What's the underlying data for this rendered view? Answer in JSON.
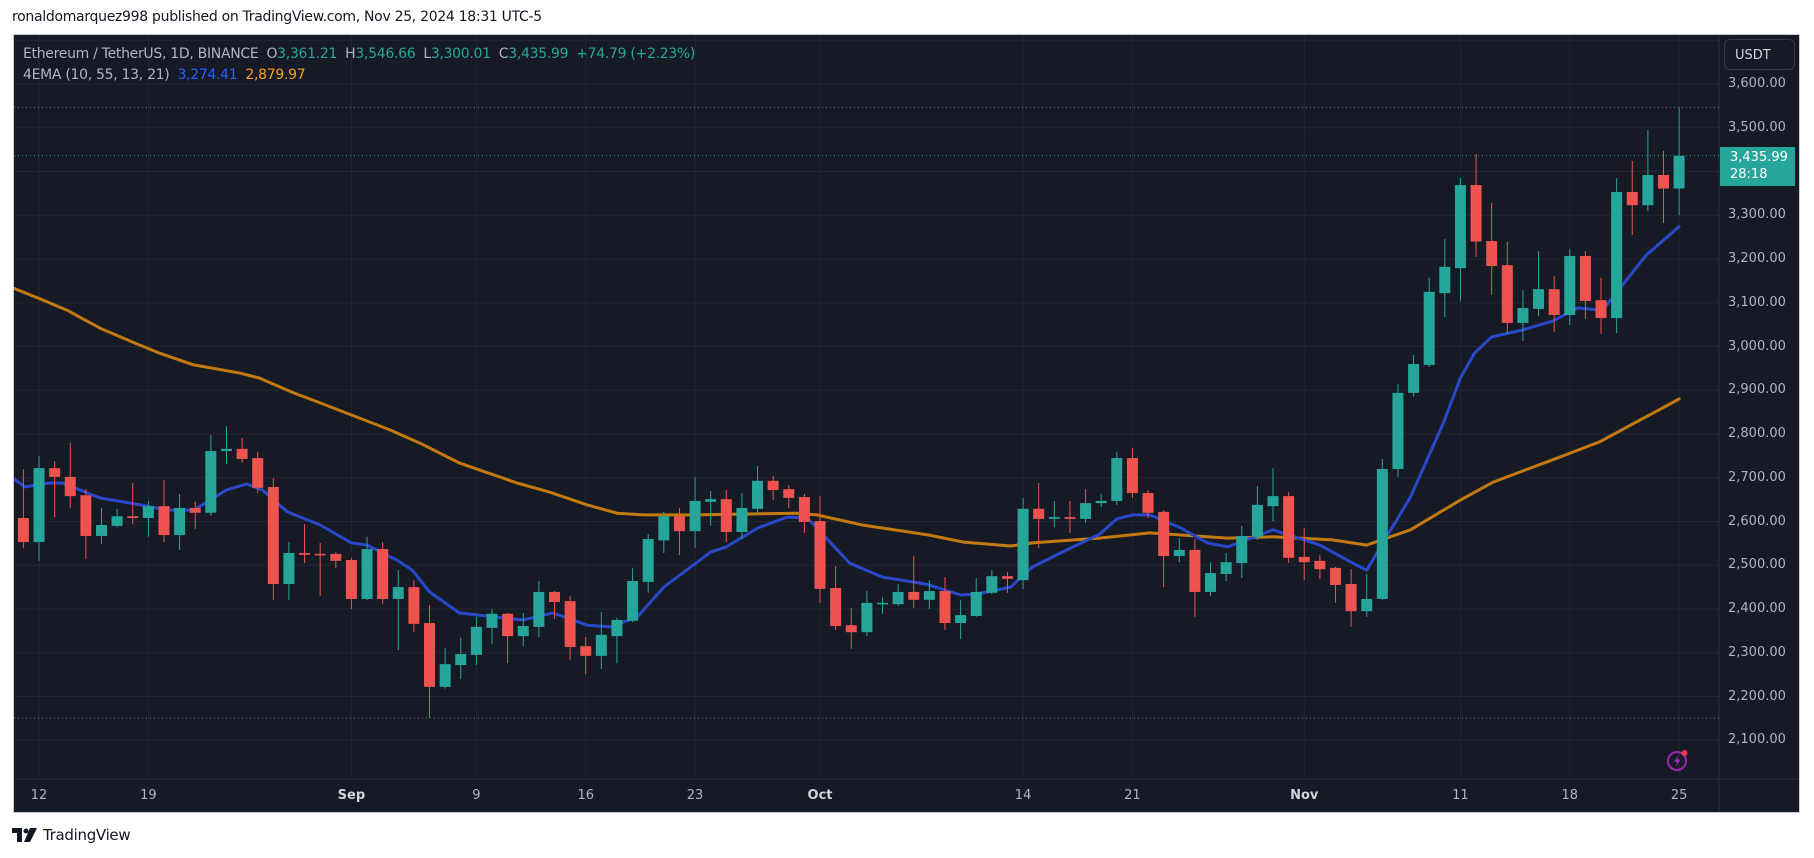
{
  "publisher_line": "ronaldomarquez998 published on TradingView.com, Nov 25, 2024 18:31 UTC-5",
  "symbol": {
    "title": "Ethereum / TetherUS, 1D, BINANCE",
    "open_label": "O",
    "open": "3,361.21",
    "high_label": "H",
    "high": "3,546.66",
    "low_label": "L",
    "low": "3,300.01",
    "close_label": "C",
    "close": "3,435.99",
    "change": "+74.79 (+2.23%)"
  },
  "indicator": {
    "name": "4EMA (10, 55, 13, 21)",
    "value_fast": "3,274.41",
    "value_slow": "2,879.97"
  },
  "price_axis": {
    "currency_button": "USDT",
    "last_price": "3,435.99",
    "countdown": "28:18",
    "labels": [
      "3,600.00",
      "3,500.00",
      "3,300.00",
      "3,200.00",
      "3,100.00",
      "3,000.00",
      "2,900.00",
      "2,800.00",
      "2,700.00",
      "2,600.00",
      "2,500.00",
      "2,400.00",
      "2,300.00",
      "2,200.00",
      "2,100.00"
    ]
  },
  "time_axis": {
    "labels": [
      {
        "text": "12",
        "bold": false
      },
      {
        "text": "19",
        "bold": false
      },
      {
        "text": "Sep",
        "bold": true
      },
      {
        "text": "9",
        "bold": false
      },
      {
        "text": "16",
        "bold": false
      },
      {
        "text": "23",
        "bold": false
      },
      {
        "text": "Oct",
        "bold": true
      },
      {
        "text": "14",
        "bold": false
      },
      {
        "text": "21",
        "bold": false
      },
      {
        "text": "Nov",
        "bold": true
      },
      {
        "text": "11",
        "bold": false
      },
      {
        "text": "18",
        "bold": false
      },
      {
        "text": "25",
        "bold": false
      }
    ]
  },
  "footer": {
    "brand": "TradingView"
  },
  "colors": {
    "up": "#26a69a",
    "down": "#ef5350",
    "ema_fast": "#2948c9",
    "ema_slow": "#c27a10",
    "background": "#161a25",
    "grid": "#222633"
  },
  "chart_data": {
    "type": "candlestick",
    "title": "Ethereum / TetherUS, 1D, BINANCE",
    "xlabel": "",
    "ylabel": "USDT",
    "ylim": [
      2020,
      3700
    ],
    "grid": true,
    "first_date": "Aug 11, 2024",
    "last_date": "Nov 25, 2024",
    "candles": [
      [
        2608,
        2720,
        2539,
        2553
      ],
      [
        2553,
        2750,
        2510,
        2722
      ],
      [
        2722,
        2738,
        2610,
        2702
      ],
      [
        2702,
        2780,
        2631,
        2658
      ],
      [
        2660,
        2674,
        2514,
        2567
      ],
      [
        2567,
        2631,
        2549,
        2592
      ],
      [
        2590,
        2629,
        2587,
        2612
      ],
      [
        2612,
        2688,
        2594,
        2608
      ],
      [
        2608,
        2647,
        2565,
        2635
      ],
      [
        2635,
        2695,
        2553,
        2569
      ],
      [
        2569,
        2663,
        2535,
        2631
      ],
      [
        2631,
        2645,
        2583,
        2620
      ],
      [
        2620,
        2798,
        2613,
        2761
      ],
      [
        2761,
        2818,
        2731,
        2766
      ],
      [
        2766,
        2791,
        2734,
        2743
      ],
      [
        2745,
        2759,
        2665,
        2677
      ],
      [
        2679,
        2699,
        2421,
        2457
      ],
      [
        2457,
        2553,
        2421,
        2528
      ],
      [
        2528,
        2594,
        2505,
        2524
      ],
      [
        2526,
        2551,
        2430,
        2524
      ],
      [
        2526,
        2530,
        2494,
        2510
      ],
      [
        2512,
        2517,
        2400,
        2423
      ],
      [
        2423,
        2565,
        2420,
        2537
      ],
      [
        2537,
        2553,
        2411,
        2423
      ],
      [
        2423,
        2489,
        2306,
        2450
      ],
      [
        2450,
        2466,
        2347,
        2366
      ],
      [
        2368,
        2409,
        2151,
        2222
      ],
      [
        2222,
        2311,
        2218,
        2274
      ],
      [
        2272,
        2334,
        2240,
        2297
      ],
      [
        2295,
        2382,
        2272,
        2359
      ],
      [
        2357,
        2400,
        2320,
        2389
      ],
      [
        2389,
        2391,
        2276,
        2338
      ],
      [
        2338,
        2391,
        2315,
        2361
      ],
      [
        2359,
        2464,
        2336,
        2439
      ],
      [
        2439,
        2441,
        2377,
        2416
      ],
      [
        2418,
        2430,
        2284,
        2313
      ],
      [
        2315,
        2336,
        2251,
        2293
      ],
      [
        2293,
        2393,
        2263,
        2341
      ],
      [
        2338,
        2380,
        2276,
        2375
      ],
      [
        2373,
        2494,
        2370,
        2464
      ],
      [
        2462,
        2571,
        2437,
        2560
      ],
      [
        2557,
        2622,
        2528,
        2612
      ],
      [
        2612,
        2631,
        2523,
        2578
      ],
      [
        2578,
        2702,
        2539,
        2647
      ],
      [
        2645,
        2670,
        2590,
        2651
      ],
      [
        2651,
        2672,
        2553,
        2576
      ],
      [
        2576,
        2665,
        2560,
        2631
      ],
      [
        2629,
        2727,
        2617,
        2693
      ],
      [
        2693,
        2704,
        2649,
        2672
      ],
      [
        2674,
        2683,
        2631,
        2654
      ],
      [
        2656,
        2663,
        2574,
        2599
      ],
      [
        2601,
        2658,
        2414,
        2446
      ],
      [
        2448,
        2498,
        2352,
        2361
      ],
      [
        2363,
        2402,
        2309,
        2347
      ],
      [
        2347,
        2441,
        2338,
        2414
      ],
      [
        2411,
        2427,
        2389,
        2414
      ],
      [
        2411,
        2457,
        2407,
        2439
      ],
      [
        2439,
        2521,
        2402,
        2421
      ],
      [
        2421,
        2466,
        2400,
        2441
      ],
      [
        2441,
        2473,
        2352,
        2368
      ],
      [
        2368,
        2421,
        2331,
        2386
      ],
      [
        2384,
        2471,
        2382,
        2439
      ],
      [
        2437,
        2489,
        2434,
        2475
      ],
      [
        2475,
        2485,
        2437,
        2469
      ],
      [
        2466,
        2654,
        2446,
        2629
      ],
      [
        2629,
        2688,
        2539,
        2606
      ],
      [
        2606,
        2647,
        2587,
        2610
      ],
      [
        2610,
        2647,
        2574,
        2606
      ],
      [
        2606,
        2674,
        2597,
        2642
      ],
      [
        2642,
        2663,
        2633,
        2647
      ],
      [
        2647,
        2759,
        2638,
        2745
      ],
      [
        2745,
        2768,
        2654,
        2665
      ],
      [
        2665,
        2672,
        2608,
        2620
      ],
      [
        2622,
        2626,
        2450,
        2521
      ],
      [
        2521,
        2562,
        2507,
        2535
      ],
      [
        2535,
        2560,
        2382,
        2439
      ],
      [
        2439,
        2507,
        2430,
        2482
      ],
      [
        2480,
        2528,
        2464,
        2507
      ],
      [
        2505,
        2590,
        2471,
        2567
      ],
      [
        2565,
        2681,
        2558,
        2638
      ],
      [
        2635,
        2722,
        2601,
        2658
      ],
      [
        2658,
        2667,
        2505,
        2517
      ],
      [
        2519,
        2585,
        2466,
        2507
      ],
      [
        2510,
        2523,
        2469,
        2491
      ],
      [
        2494,
        2496,
        2414,
        2455
      ],
      [
        2457,
        2491,
        2359,
        2395
      ],
      [
        2395,
        2480,
        2382,
        2423
      ],
      [
        2423,
        2743,
        2420,
        2720
      ],
      [
        2720,
        2914,
        2702,
        2894
      ],
      [
        2894,
        2981,
        2885,
        2960
      ],
      [
        2958,
        3157,
        2953,
        3125
      ],
      [
        3122,
        3246,
        3067,
        3182
      ],
      [
        3179,
        3385,
        3104,
        3369
      ],
      [
        3369,
        3440,
        3205,
        3240
      ],
      [
        3241,
        3328,
        3118,
        3184
      ],
      [
        3186,
        3239,
        3029,
        3054
      ],
      [
        3054,
        3129,
        3013,
        3088
      ],
      [
        3086,
        3218,
        3070,
        3131
      ],
      [
        3131,
        3161,
        3033,
        3072
      ],
      [
        3072,
        3223,
        3049,
        3207
      ],
      [
        3207,
        3218,
        3063,
        3104
      ],
      [
        3106,
        3157,
        3029,
        3065
      ],
      [
        3065,
        3385,
        3031,
        3353
      ],
      [
        3353,
        3424,
        3255,
        3323
      ],
      [
        3323,
        3495,
        3310,
        3392
      ],
      [
        3392,
        3447,
        3282,
        3361
      ],
      [
        3361.21,
        3546.66,
        3300.01,
        3435.99
      ]
    ],
    "candle_format": [
      "open",
      "high",
      "low",
      "close"
    ],
    "series": [
      {
        "name": "EMA fast",
        "last": 3274.41,
        "points": [
          [
            -0.67,
            2699
          ],
          [
            0.1,
            2679
          ],
          [
            1.7,
            2688
          ],
          [
            2.5,
            2688
          ],
          [
            4.9,
            2654
          ],
          [
            7.5,
            2638
          ],
          [
            9.2,
            2626
          ],
          [
            10.9,
            2626
          ],
          [
            13.0,
            2672
          ],
          [
            14.3,
            2686
          ],
          [
            15.3,
            2672
          ],
          [
            16.9,
            2622
          ],
          [
            19.0,
            2592
          ],
          [
            21.0,
            2551
          ],
          [
            22.0,
            2546
          ],
          [
            23.9,
            2512
          ],
          [
            24.9,
            2489
          ],
          [
            26.0,
            2439
          ],
          [
            27.9,
            2391
          ],
          [
            30.1,
            2382
          ],
          [
            32.0,
            2375
          ],
          [
            33.9,
            2391
          ],
          [
            36.1,
            2363
          ],
          [
            37.6,
            2359
          ],
          [
            39.3,
            2382
          ],
          [
            41.0,
            2450
          ],
          [
            44.0,
            2530
          ],
          [
            45.0,
            2542
          ],
          [
            47.0,
            2585
          ],
          [
            48.9,
            2610
          ],
          [
            50.2,
            2608
          ],
          [
            52.9,
            2505
          ],
          [
            55.0,
            2473
          ],
          [
            57.8,
            2457
          ],
          [
            60.0,
            2432
          ],
          [
            61.0,
            2434
          ],
          [
            63.2,
            2450
          ],
          [
            64.6,
            2496
          ],
          [
            66.8,
            2535
          ],
          [
            68.9,
            2571
          ],
          [
            70.0,
            2606
          ],
          [
            71.0,
            2615
          ],
          [
            72.1,
            2615
          ],
          [
            74.0,
            2587
          ],
          [
            75.8,
            2551
          ],
          [
            77.1,
            2542
          ],
          [
            80.0,
            2581
          ],
          [
            83.0,
            2546
          ],
          [
            85.1,
            2505
          ],
          [
            86.0,
            2489
          ],
          [
            88.8,
            2656
          ],
          [
            90.9,
            2825
          ],
          [
            92.0,
            2928
          ],
          [
            92.9,
            2985
          ],
          [
            94.0,
            3022
          ],
          [
            96.0,
            3038
          ],
          [
            97.9,
            3058
          ],
          [
            99.5,
            3088
          ],
          [
            101.1,
            3083
          ],
          [
            103.9,
            3209
          ],
          [
            106,
            3274
          ]
        ]
      },
      {
        "name": "EMA slow",
        "last": 2879.97,
        "points": [
          [
            -0.67,
            3134
          ],
          [
            1.06,
            3109
          ],
          [
            2.79,
            3083
          ],
          [
            4.9,
            3042
          ],
          [
            7.0,
            3010
          ],
          [
            8.7,
            2985
          ],
          [
            10.9,
            2958
          ],
          [
            13.9,
            2939
          ],
          [
            15.1,
            2928
          ],
          [
            17.3,
            2894
          ],
          [
            19.0,
            2871
          ],
          [
            23.5,
            2809
          ],
          [
            25.4,
            2779
          ],
          [
            27.9,
            2734
          ],
          [
            31.6,
            2688
          ],
          [
            33.7,
            2667
          ],
          [
            36.1,
            2638
          ],
          [
            38.0,
            2619
          ],
          [
            39.7,
            2615
          ],
          [
            43.1,
            2615
          ],
          [
            49.5,
            2619
          ],
          [
            50.8,
            2615
          ],
          [
            53.7,
            2592
          ],
          [
            58.0,
            2569
          ],
          [
            60.2,
            2553
          ],
          [
            63.2,
            2544
          ],
          [
            64.6,
            2551
          ],
          [
            68.9,
            2562
          ],
          [
            72.1,
            2574
          ],
          [
            77.1,
            2562
          ],
          [
            80.0,
            2565
          ],
          [
            83.8,
            2558
          ],
          [
            86.0,
            2546
          ],
          [
            88.8,
            2581
          ],
          [
            92.0,
            2649
          ],
          [
            94.1,
            2690
          ],
          [
            97.9,
            2741
          ],
          [
            100.9,
            2782
          ],
          [
            106,
            2880
          ]
        ]
      }
    ],
    "reference_lines": {
      "high": 3546.66,
      "last": 3435.99,
      "low": 2151
    },
    "y_ticks": [
      3600,
      3500,
      3300,
      3200,
      3100,
      3000,
      2900,
      2800,
      2700,
      2600,
      2500,
      2400,
      2300,
      2200,
      2100
    ],
    "x_tick_index": [
      1,
      8,
      21,
      29,
      36,
      43,
      51,
      64,
      71,
      82,
      92,
      99,
      106
    ]
  }
}
